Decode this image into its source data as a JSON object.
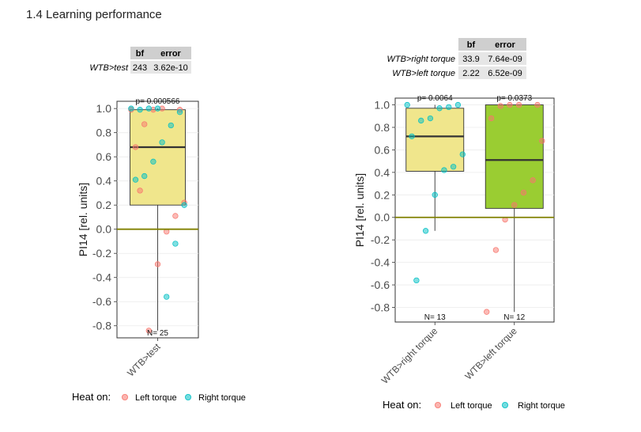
{
  "page": {
    "title": "1.4 Learning performance"
  },
  "table_left": {
    "headers": [
      "",
      "bf",
      "error"
    ],
    "rows": [
      {
        "label": "WTB>test",
        "bf": "243",
        "error": "3.62e-10"
      }
    ]
  },
  "table_right": {
    "headers": [
      "",
      "bf",
      "error"
    ],
    "rows": [
      {
        "label": "WTB>right torque",
        "bf": "33.9",
        "error": "7.64e-09"
      },
      {
        "label": "WTB>left torque",
        "bf": "2.22",
        "error": "6.52e-09"
      }
    ]
  },
  "legend": {
    "title": "Heat on:",
    "items": [
      {
        "label": "Left torque",
        "color": "#F8766D"
      },
      {
        "label": "Right torque",
        "color": "#00BFC4"
      }
    ]
  },
  "colors": {
    "box_yellow": "#F0E68C",
    "box_green": "#9ACD32",
    "zero_line": "#808000"
  },
  "chart_data": [
    {
      "type": "box",
      "ylabel": "PI14 [rel. units]",
      "ylim": [
        -0.9,
        1.06
      ],
      "yticks": [
        "1.0",
        "0.8",
        "0.6",
        "0.4",
        "0.2",
        "0.0",
        "-0.2",
        "-0.4",
        "-0.6",
        "-0.8"
      ],
      "categories": [
        "WTB>test"
      ],
      "zero_line": 0,
      "boxes": [
        {
          "category": "WTB>test",
          "fill": "#F0E68C",
          "median": 0.68,
          "q1": 0.2,
          "q3": 0.99,
          "whisker_low": -0.84,
          "whisker_high": 1.0,
          "p_label": "p= 0.000566",
          "n_label": "N= 25",
          "points_left": [
            1.0,
            0.99,
            0.87,
            0.68,
            0.22,
            0.11,
            -0.02,
            -0.29,
            -0.84,
            0.32,
            0.99,
            0.99
          ],
          "points_right": [
            1.0,
            0.97,
            0.86,
            0.72,
            0.56,
            0.44,
            0.41,
            0.2,
            -0.12,
            -0.56,
            1.0,
            1.0,
            0.99
          ]
        }
      ]
    },
    {
      "type": "box",
      "ylabel": "PI14 [rel. units]",
      "ylim": [
        -0.93,
        1.06
      ],
      "yticks": [
        "1.0",
        "0.8",
        "0.6",
        "0.4",
        "0.2",
        "0.0",
        "-0.2",
        "-0.4",
        "-0.6",
        "-0.8"
      ],
      "categories": [
        "WTB>right torque",
        "WTB>left torque"
      ],
      "zero_line": 0,
      "boxes": [
        {
          "category": "WTB>right torque",
          "fill": "#F0E68C",
          "median": 0.72,
          "q1": 0.41,
          "q3": 0.97,
          "whisker_low": -0.12,
          "whisker_high": 1.0,
          "p_label": "p= 0.0064",
          "n_label": "N= 13",
          "points_left": [],
          "points_right": [
            1.0,
            1.0,
            0.98,
            0.97,
            0.88,
            0.86,
            0.72,
            0.56,
            0.45,
            0.42,
            0.2,
            -0.12,
            -0.56
          ]
        },
        {
          "category": "WTB>left torque",
          "fill": "#9ACD32",
          "median": 0.51,
          "q1": 0.08,
          "q3": 1.0,
          "whisker_low": -0.84,
          "whisker_high": 1.0,
          "p_label": "p= 0.0373",
          "n_label": "N= 12",
          "points_left": [
            1.0,
            1.0,
            0.99,
            0.88,
            0.68,
            0.33,
            0.22,
            0.11,
            -0.02,
            -0.29,
            -0.84,
            1.0
          ],
          "points_right": []
        }
      ]
    }
  ]
}
